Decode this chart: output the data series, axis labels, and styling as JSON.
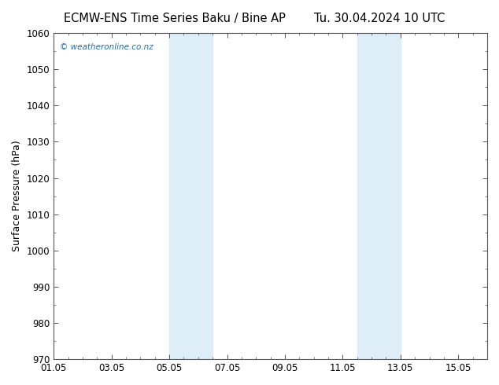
{
  "title_left": "ECMW-ENS Time Series Baku / Bine AP",
  "title_right": "Tu. 30.04.2024 10 UTC",
  "ylabel": "Surface Pressure (hPa)",
  "ylim": [
    970,
    1060
  ],
  "yticks": [
    970,
    980,
    990,
    1000,
    1010,
    1020,
    1030,
    1040,
    1050,
    1060
  ],
  "xtick_labels": [
    "01.05",
    "03.05",
    "05.05",
    "07.05",
    "09.05",
    "11.05",
    "13.05",
    "15.05"
  ],
  "xtick_positions": [
    0,
    2,
    4,
    6,
    8,
    10,
    12,
    14
  ],
  "xlim": [
    0,
    15
  ],
  "shade_regions": [
    {
      "x_start": 4.0,
      "x_end": 5.5
    },
    {
      "x_start": 10.5,
      "x_end": 12.0
    }
  ],
  "shade_color": "#ddeef9",
  "bg_color": "#ffffff",
  "plot_bg_color": "#ffffff",
  "watermark_text": "© weatheronline.co.nz",
  "watermark_color": "#1a6eb5",
  "title_fontsize": 10.5,
  "axis_fontsize": 9,
  "tick_fontsize": 8.5,
  "spine_color": "#555555"
}
